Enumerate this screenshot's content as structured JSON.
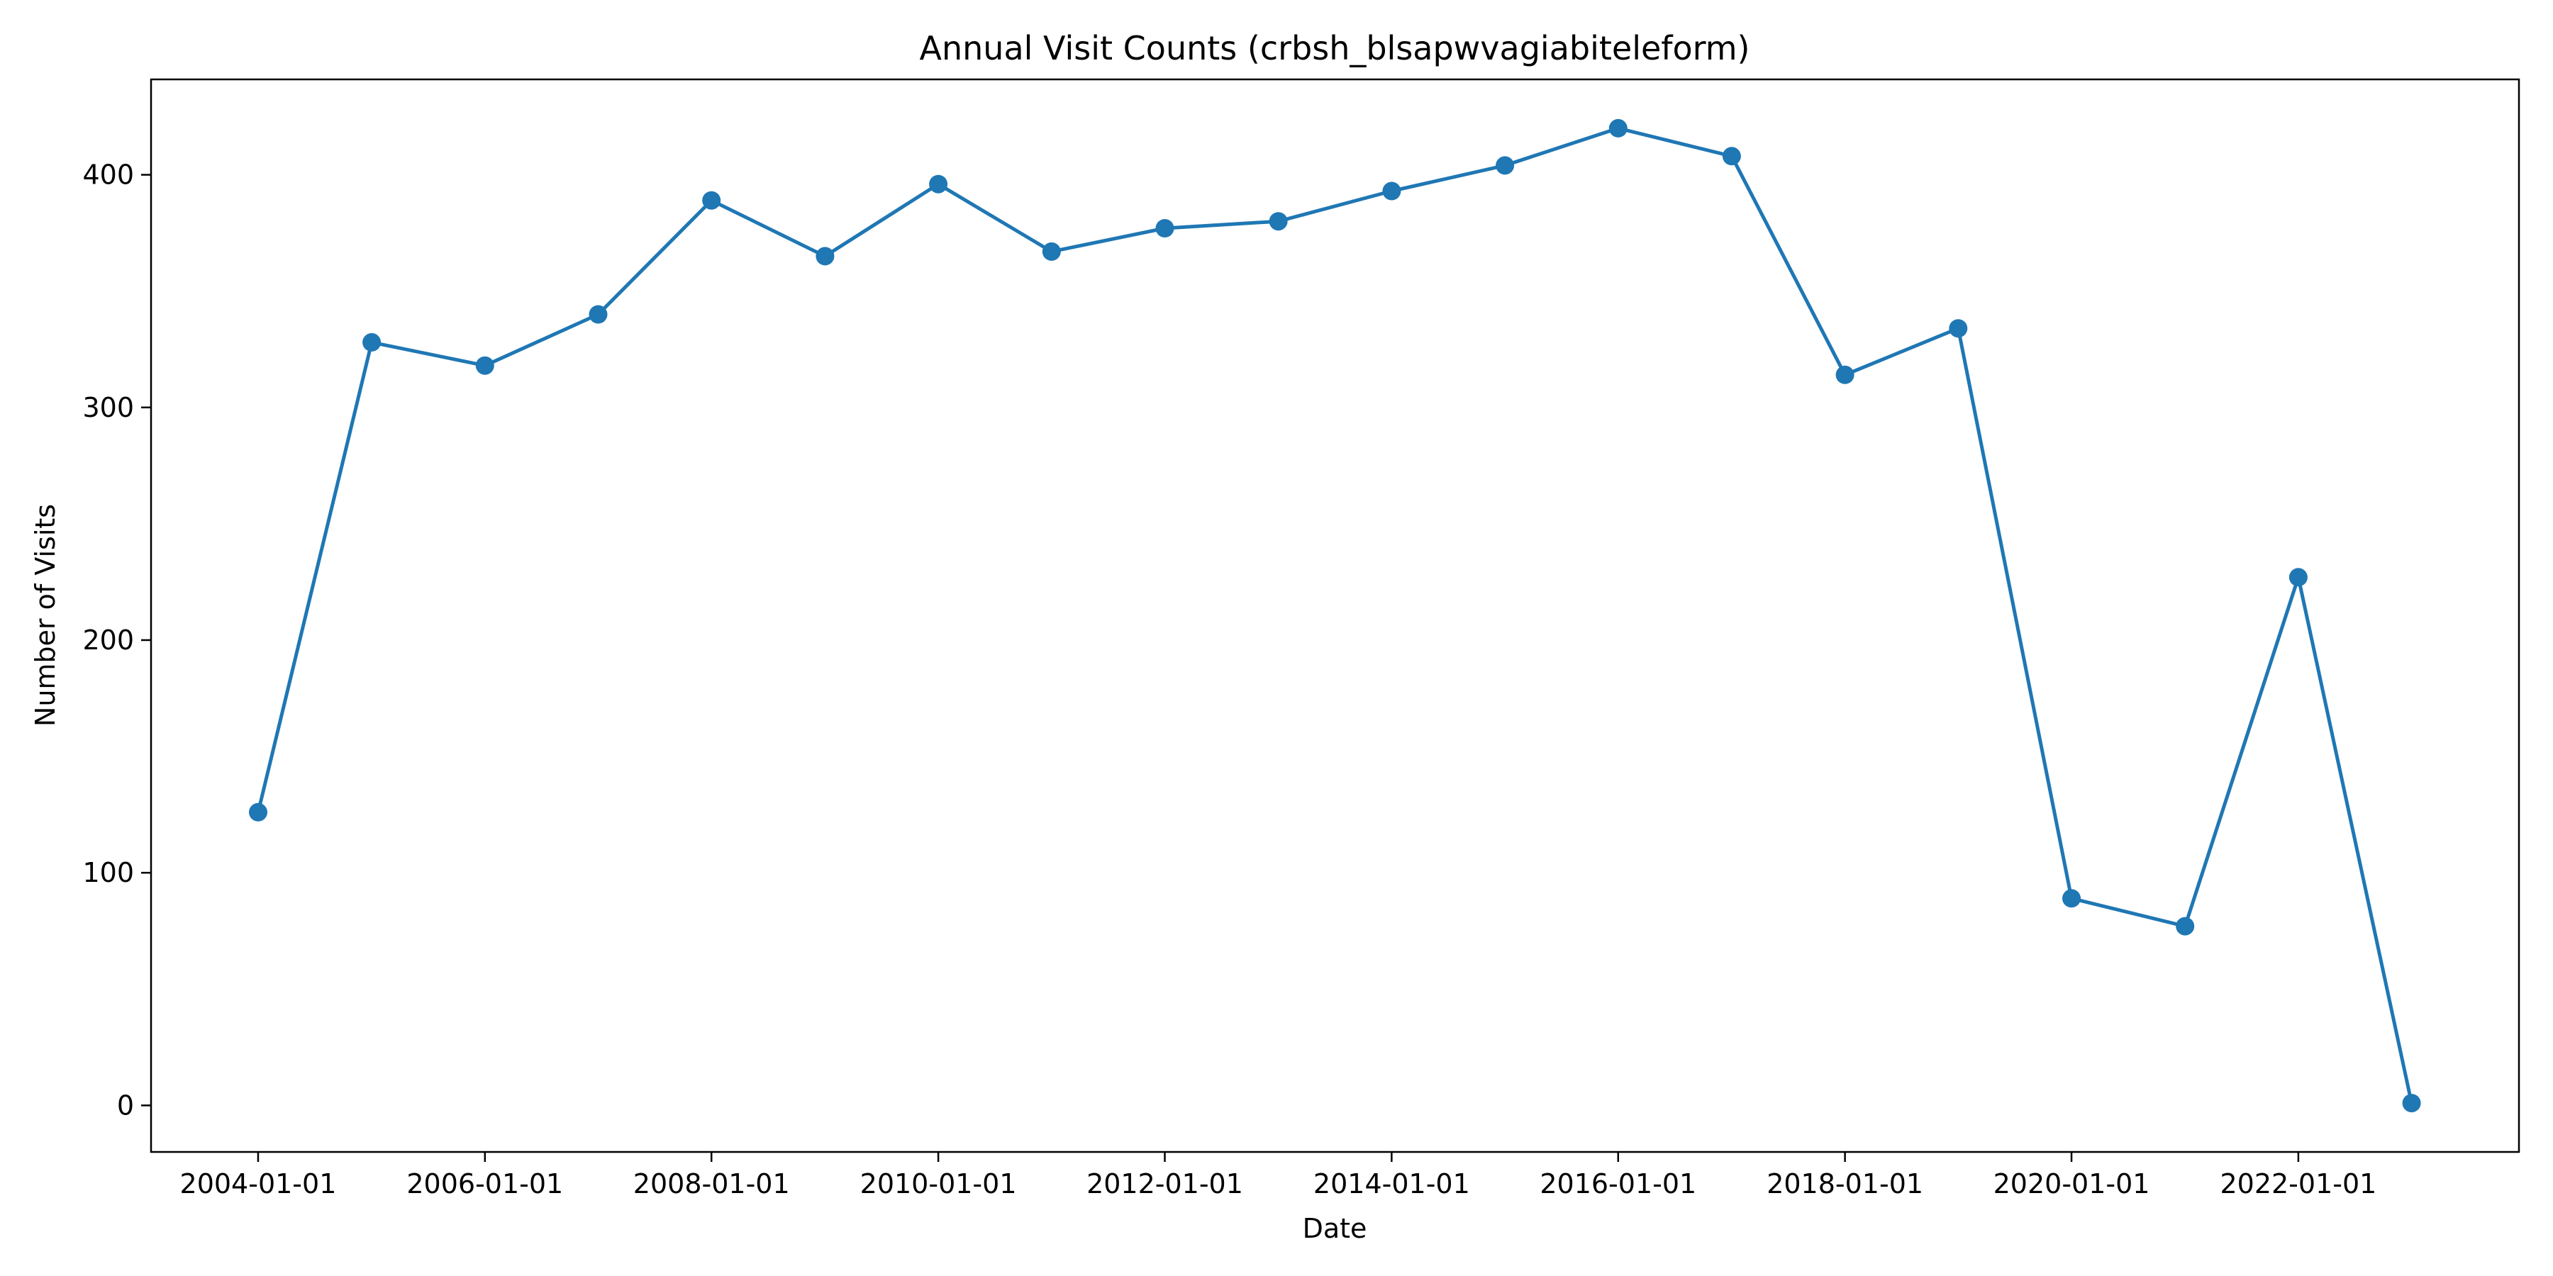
{
  "chart_data": {
    "type": "line",
    "title": "Annual Visit Counts (crbsh_blsapwvagiabiteleform)",
    "xlabel": "Date",
    "ylabel": "Number of Visits",
    "x_tick_labels": [
      "2004-01-01",
      "2006-01-01",
      "2008-01-01",
      "2010-01-01",
      "2012-01-01",
      "2014-01-01",
      "2016-01-01",
      "2018-01-01",
      "2020-01-01",
      "2022-01-01"
    ],
    "y_tick_labels": [
      "0",
      "100",
      "200",
      "300",
      "400"
    ],
    "y_ticks": [
      0,
      100,
      200,
      300,
      400
    ],
    "xlim": [
      "2003-01-21",
      "2023-12-13"
    ],
    "ylim": [
      -20,
      441
    ],
    "grid": false,
    "legend": "none",
    "x": [
      "2004-01-01",
      "2005-01-01",
      "2006-01-01",
      "2007-01-01",
      "2008-01-01",
      "2009-01-01",
      "2010-01-01",
      "2011-01-01",
      "2012-01-01",
      "2013-01-01",
      "2014-01-01",
      "2015-01-01",
      "2016-01-01",
      "2017-01-01",
      "2018-01-01",
      "2019-01-01",
      "2020-01-01",
      "2021-01-01",
      "2022-01-01",
      "2023-01-01"
    ],
    "series": [
      {
        "values": [
          126,
          328,
          318,
          340,
          389,
          365,
          396,
          367,
          377,
          380,
          393,
          404,
          420,
          408,
          314,
          334,
          89,
          77,
          227,
          1
        ],
        "color": "#1f77b4",
        "marker": "circle"
      }
    ]
  }
}
